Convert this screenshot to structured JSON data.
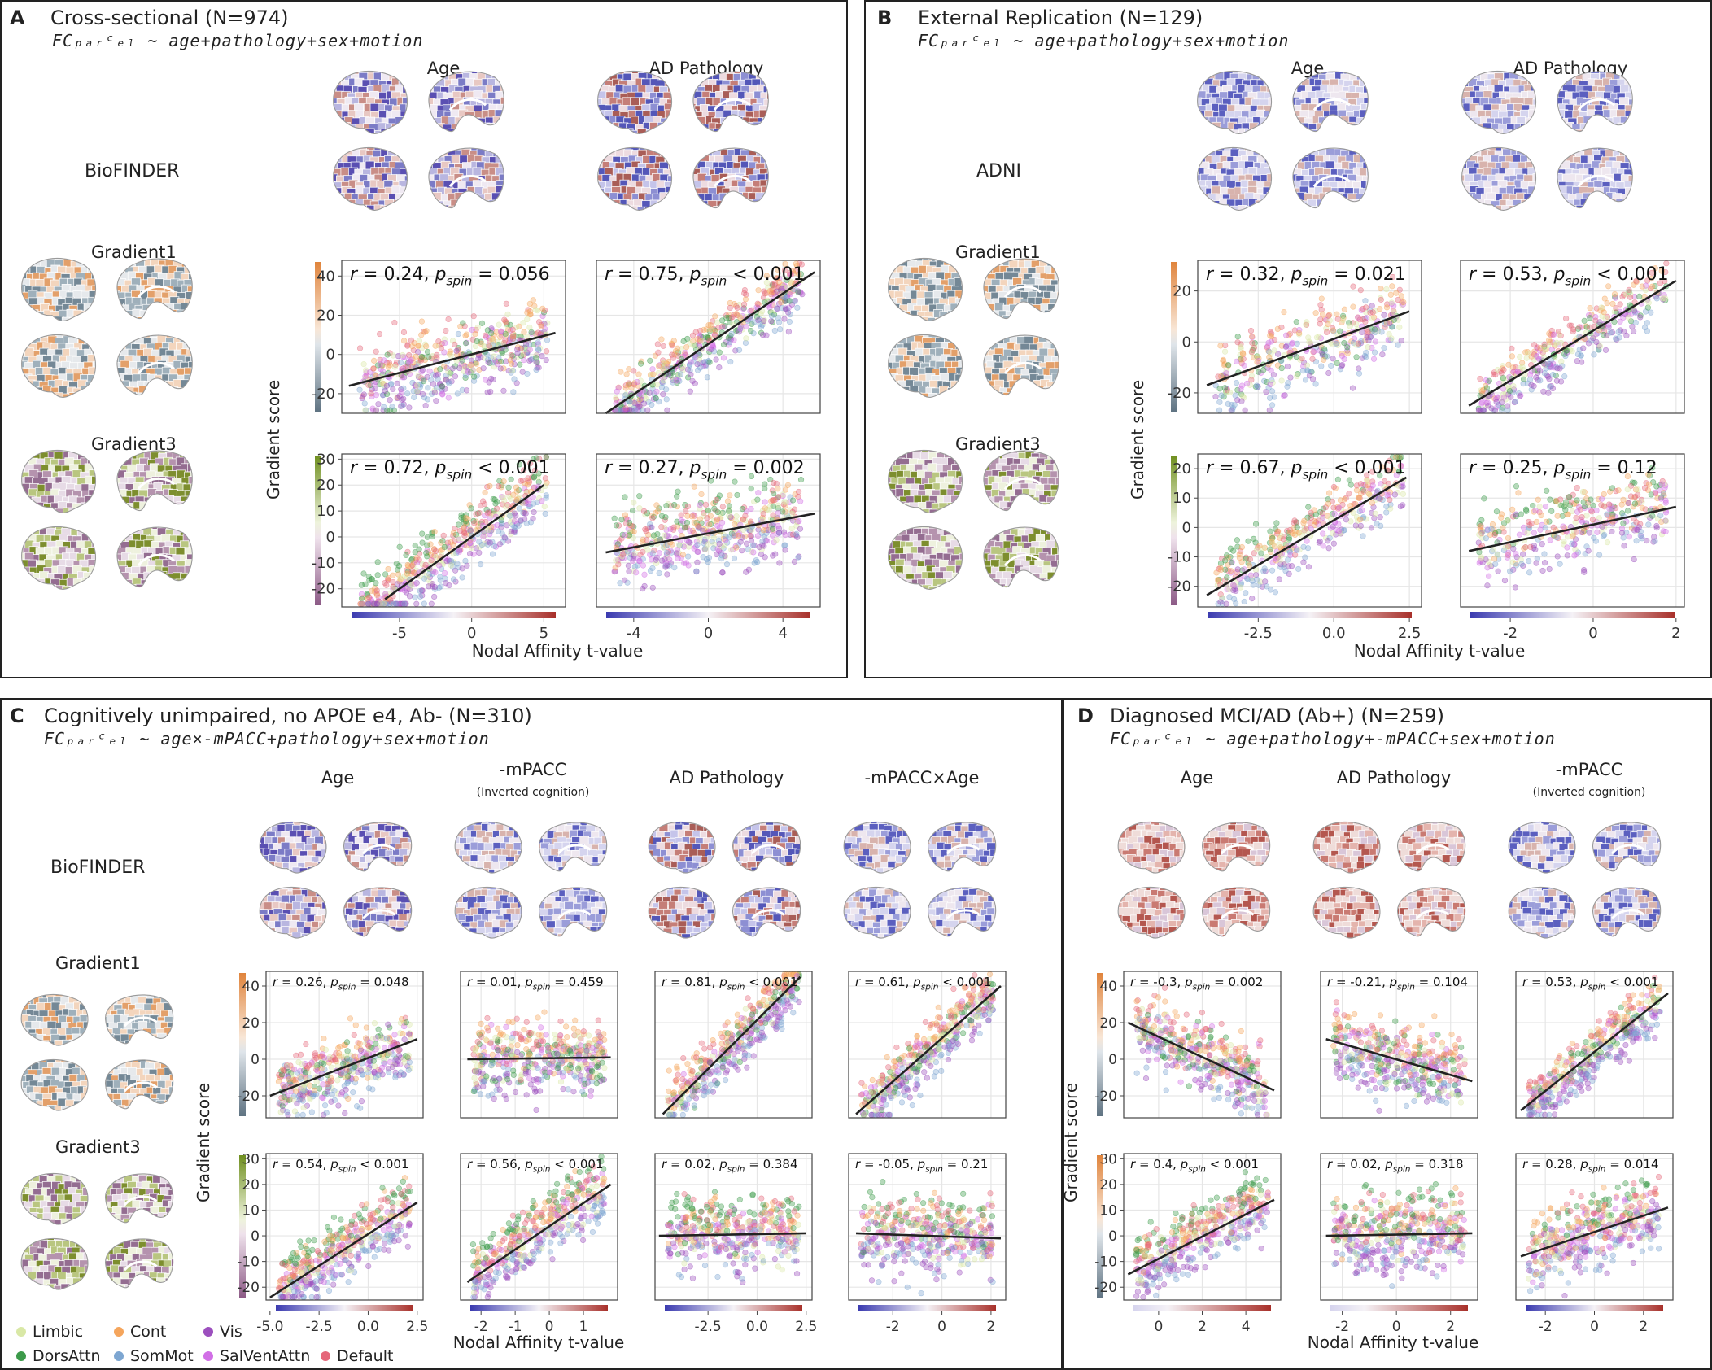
{
  "legend": [
    {
      "name": "Limbic",
      "color": "#d9e8a6"
    },
    {
      "name": "Cont",
      "color": "#f5a55c"
    },
    {
      "name": "Vis",
      "color": "#9c4fbe"
    },
    {
      "name": "DorsAttn",
      "color": "#3c9a4a"
    },
    {
      "name": "SomMot",
      "color": "#7da6d1"
    },
    {
      "name": "SalVentAttn",
      "color": "#d16fe6"
    },
    {
      "name": "Default",
      "color": "#e5677a"
    }
  ],
  "common": {
    "y_label": "Gradient score",
    "x_label": "Nodal Affinity t-value",
    "gradient1": "Gradient1",
    "gradient3": "Gradient3"
  },
  "panels": {
    "A": {
      "letter": "A",
      "title": "Cross-sectional (N=974)",
      "formula": "FCₚₐᵣᶜₑₗ ~ age+pathology+sex+motion",
      "cohort": "BioFINDER",
      "columns": [
        {
          "title": "Age",
          "sub": ""
        },
        {
          "title": "AD Pathology",
          "sub": ""
        }
      ]
    },
    "B": {
      "letter": "B",
      "title": "External Replication (N=129)",
      "formula": "FCₚₐᵣᶜₑₗ ~ age+pathology+sex+motion",
      "cohort": "ADNI",
      "columns": [
        {
          "title": "Age",
          "sub": ""
        },
        {
          "title": "AD Pathology",
          "sub": ""
        }
      ]
    },
    "C": {
      "letter": "C",
      "title": "Cognitively unimpaired, no APOE e4, Ab- (N=310)",
      "formula": "FCₚₐᵣᶜₑₗ ~ age×-mPACC+pathology+sex+motion",
      "cohort": "BioFINDER",
      "columns": [
        {
          "title": "Age",
          "sub": ""
        },
        {
          "title": "-mPACC",
          "sub": "(Inverted cognition)"
        },
        {
          "title": "AD Pathology",
          "sub": ""
        },
        {
          "title": "-mPACC×Age",
          "sub": ""
        }
      ]
    },
    "D": {
      "letter": "D",
      "title": "Diagnosed MCI/AD (Ab+) (N=259)",
      "formula": "FCₚₐᵣᶜₑₗ ~ age+pathology+-mPACC+sex+motion",
      "cohort": "",
      "columns": [
        {
          "title": "Age",
          "sub": ""
        },
        {
          "title": "AD Pathology",
          "sub": ""
        },
        {
          "title": "-mPACC",
          "sub": "(Inverted cognition)"
        }
      ]
    }
  },
  "chart_data": [
    {
      "id": "A-g1-age",
      "type": "scatter",
      "panel": "A",
      "gradient": "Gradient1",
      "column": "Age",
      "r": "0.24",
      "p": "= 0.056",
      "xlim": [
        -9,
        6.5
      ],
      "ylim": [
        -30,
        48
      ],
      "xticks": [
        "-5",
        "0",
        "5"
      ],
      "yticks": [
        "40",
        "20",
        "0",
        "-20"
      ],
      "fit": [
        [
          -8.5,
          -16
        ],
        [
          5.8,
          11
        ]
      ],
      "colorbar": "g1",
      "mode": "a"
    },
    {
      "id": "A-g1-path",
      "type": "scatter",
      "panel": "A",
      "gradient": "Gradient1",
      "column": "AD Pathology",
      "r": "0.75",
      "p": "< 0.001",
      "xlim": [
        -6,
        6
      ],
      "ylim": [
        -30,
        48
      ],
      "xticks": [
        "-4",
        "0",
        "4"
      ],
      "yticks": [],
      "fit": [
        [
          -5.5,
          -30
        ],
        [
          5.7,
          42
        ]
      ],
      "colorbar": "g1",
      "mode": "b"
    },
    {
      "id": "A-g3-age",
      "type": "scatter",
      "panel": "A",
      "gradient": "Gradient3",
      "column": "Age",
      "r": "0.72",
      "p": "< 0.001",
      "xlim": [
        -9,
        6.5
      ],
      "ylim": [
        -27,
        32
      ],
      "xticks": [
        "-5",
        "0",
        "5"
      ],
      "yticks": [
        "30",
        "20",
        "10",
        "0",
        "-10",
        "-20"
      ],
      "fit": [
        [
          -6,
          -24
        ],
        [
          5,
          20
        ]
      ],
      "colorbar": "g3",
      "mode": "c"
    },
    {
      "id": "A-g3-path",
      "type": "scatter",
      "panel": "A",
      "gradient": "Gradient3",
      "column": "AD Pathology",
      "r": "0.27",
      "p": "= 0.002",
      "xlim": [
        -6,
        6
      ],
      "ylim": [
        -27,
        32
      ],
      "xticks": [
        "-4",
        "0",
        "4"
      ],
      "yticks": [],
      "fit": [
        [
          -5.5,
          -6
        ],
        [
          5.7,
          9
        ]
      ],
      "colorbar": "g3",
      "mode": "d"
    },
    {
      "id": "B-g1-age",
      "type": "scatter",
      "panel": "B",
      "gradient": "Gradient1",
      "column": "Age",
      "r": "0.32",
      "p": "= 0.021",
      "xlim": [
        -4.5,
        2.9
      ],
      "ylim": [
        -28,
        32
      ],
      "xticks": [
        "-2.5",
        "0.0",
        "2.5"
      ],
      "yticks": [
        "20",
        "0",
        "-20"
      ],
      "fit": [
        [
          -4.2,
          -17
        ],
        [
          2.5,
          12
        ]
      ],
      "colorbar": "g1",
      "mode": "a"
    },
    {
      "id": "B-g1-path",
      "type": "scatter",
      "panel": "B",
      "gradient": "Gradient1",
      "column": "AD Pathology",
      "r": "0.53",
      "p": "< 0.001",
      "xlim": [
        -3.2,
        2.2
      ],
      "ylim": [
        -28,
        32
      ],
      "xticks": [
        "-2",
        "0",
        "2"
      ],
      "yticks": [],
      "fit": [
        [
          -3,
          -25
        ],
        [
          2,
          24
        ]
      ],
      "colorbar": "g1",
      "mode": "b"
    },
    {
      "id": "B-g3-age",
      "type": "scatter",
      "panel": "B",
      "gradient": "Gradient3",
      "column": "Age",
      "r": "0.67",
      "p": "< 0.001",
      "xlim": [
        -4.5,
        2.9
      ],
      "ylim": [
        -27,
        25
      ],
      "xticks": [
        "-2.5",
        "0.0",
        "2.5"
      ],
      "yticks": [
        "20",
        "10",
        "0",
        "-10",
        "-20"
      ],
      "fit": [
        [
          -4.2,
          -23
        ],
        [
          2.4,
          17
        ]
      ],
      "colorbar": "g3",
      "mode": "c"
    },
    {
      "id": "B-g3-path",
      "type": "scatter",
      "panel": "B",
      "gradient": "Gradient3",
      "column": "AD Pathology",
      "r": "0.25",
      "p": "= 0.12",
      "xlim": [
        -3.2,
        2.2
      ],
      "ylim": [
        -27,
        25
      ],
      "xticks": [
        "-2",
        "0",
        "2"
      ],
      "yticks": [],
      "fit": [
        [
          -3,
          -8
        ],
        [
          2,
          7
        ]
      ],
      "colorbar": "g3",
      "mode": "d"
    },
    {
      "id": "C-g1-age",
      "type": "scatter",
      "panel": "C",
      "gradient": "Gradient1",
      "column": "Age",
      "r": "0.26",
      "p": "= 0.048",
      "xlim": [
        -5.2,
        2.8
      ],
      "ylim": [
        -32,
        48
      ],
      "xticks": [
        "-5.0",
        "-2.5",
        "0.0",
        "2.5"
      ],
      "yticks": [
        "40",
        "20",
        "0",
        "-20"
      ],
      "fit": [
        [
          -5,
          -20
        ],
        [
          2.5,
          11
        ]
      ],
      "colorbar": "g1",
      "mode": "a"
    },
    {
      "id": "C-g1-mpacc",
      "type": "scatter",
      "panel": "C",
      "gradient": "Gradient1",
      "column": "-mPACC",
      "r": "0.01",
      "p": "= 0.459",
      "xlim": [
        -2.6,
        2.0
      ],
      "ylim": [
        -32,
        48
      ],
      "xticks": [
        "-2",
        "-1",
        "0",
        "1"
      ],
      "yticks": [],
      "fit": [
        [
          -2.4,
          0
        ],
        [
          1.8,
          1
        ]
      ],
      "colorbar": "g1",
      "mode": "a"
    },
    {
      "id": "C-g1-path",
      "type": "scatter",
      "panel": "C",
      "gradient": "Gradient1",
      "column": "AD Pathology",
      "r": "0.81",
      "p": "< 0.001",
      "xlim": [
        -5.2,
        2.8
      ],
      "ylim": [
        -32,
        48
      ],
      "xticks": [
        "-2.5",
        "0.0",
        "2.5"
      ],
      "yticks": [],
      "fit": [
        [
          -4.8,
          -30
        ],
        [
          2.2,
          45
        ]
      ],
      "colorbar": "g1",
      "mode": "b"
    },
    {
      "id": "C-g1-int",
      "type": "scatter",
      "panel": "C",
      "gradient": "Gradient1",
      "column": "-mPACC×Age",
      "r": "0.61",
      "p": "< 0.001",
      "xlim": [
        -3.8,
        2.6
      ],
      "ylim": [
        -32,
        48
      ],
      "xticks": [
        "-2",
        "0",
        "2"
      ],
      "yticks": [],
      "fit": [
        [
          -3.5,
          -30
        ],
        [
          2.4,
          40
        ]
      ],
      "colorbar": "g1",
      "mode": "b"
    },
    {
      "id": "C-g3-age",
      "type": "scatter",
      "panel": "C",
      "gradient": "Gradient3",
      "column": "Age",
      "r": "0.54",
      "p": "< 0.001",
      "xlim": [
        -5.2,
        2.8
      ],
      "ylim": [
        -25,
        32
      ],
      "xticks": [
        "-5.0",
        "-2.5",
        "0.0",
        "2.5"
      ],
      "yticks": [
        "30",
        "20",
        "10",
        "0",
        "-10",
        "-20"
      ],
      "fit": [
        [
          -5,
          -24
        ],
        [
          2.5,
          13
        ]
      ],
      "colorbar": "g3",
      "mode": "c"
    },
    {
      "id": "C-g3-mpacc",
      "type": "scatter",
      "panel": "C",
      "gradient": "Gradient3",
      "column": "-mPACC",
      "r": "0.56",
      "p": "< 0.001",
      "xlim": [
        -2.6,
        2.0
      ],
      "ylim": [
        -25,
        32
      ],
      "xticks": [
        "-2",
        "-1",
        "0",
        "1"
      ],
      "yticks": [],
      "fit": [
        [
          -2.4,
          -18
        ],
        [
          1.8,
          20
        ]
      ],
      "colorbar": "g3",
      "mode": "c"
    },
    {
      "id": "C-g3-path",
      "type": "scatter",
      "panel": "C",
      "gradient": "Gradient3",
      "column": "AD Pathology",
      "r": "0.02",
      "p": "= 0.384",
      "xlim": [
        -5.2,
        2.8
      ],
      "ylim": [
        -25,
        32
      ],
      "xticks": [
        "-2.5",
        "0.0",
        "2.5"
      ],
      "yticks": [],
      "fit": [
        [
          -5,
          0
        ],
        [
          2.5,
          1
        ]
      ],
      "colorbar": "g3",
      "mode": "d"
    },
    {
      "id": "C-g3-int",
      "type": "scatter",
      "panel": "C",
      "gradient": "Gradient3",
      "column": "-mPACC×Age",
      "r": "-0.05",
      "p": "= 0.21",
      "xlim": [
        -3.8,
        2.6
      ],
      "ylim": [
        -25,
        32
      ],
      "xticks": [
        "-2",
        "0",
        "2"
      ],
      "yticks": [],
      "fit": [
        [
          -3.5,
          1
        ],
        [
          2.4,
          -1
        ]
      ],
      "colorbar": "g3",
      "mode": "d"
    },
    {
      "id": "D-g1-age",
      "type": "scatter",
      "panel": "D",
      "gradient": "Gradient1",
      "column": "Age",
      "r": "-0.3",
      "p": "= 0.002",
      "xlim": [
        -1.6,
        5.6
      ],
      "ylim": [
        -32,
        48
      ],
      "xticks": [
        "0",
        "2",
        "4"
      ],
      "yticks": [
        "40",
        "20",
        "0",
        "-20"
      ],
      "fit": [
        [
          -1.4,
          20
        ],
        [
          5.3,
          -17
        ]
      ],
      "colorbar": "g1d",
      "mode": "a"
    },
    {
      "id": "D-g1-path",
      "type": "scatter",
      "panel": "D",
      "gradient": "Gradient1",
      "column": "AD Pathology",
      "r": "-0.21",
      "p": "= 0.104",
      "xlim": [
        -2.8,
        3.0
      ],
      "ylim": [
        -32,
        48
      ],
      "xticks": [
        "-2",
        "0",
        "2"
      ],
      "yticks": [],
      "fit": [
        [
          -2.6,
          11
        ],
        [
          2.8,
          -12
        ]
      ],
      "colorbar": "g1d",
      "mode": "a"
    },
    {
      "id": "D-g1-mpacc",
      "type": "scatter",
      "panel": "D",
      "gradient": "Gradient1",
      "column": "-mPACC",
      "r": "0.53",
      "p": "< 0.001",
      "xlim": [
        -3.2,
        3.2
      ],
      "ylim": [
        -32,
        48
      ],
      "xticks": [
        "-2",
        "0",
        "2"
      ],
      "yticks": [],
      "fit": [
        [
          -3,
          -28
        ],
        [
          3,
          36
        ]
      ],
      "colorbar": "g1",
      "mode": "b"
    },
    {
      "id": "D-g3-age",
      "type": "scatter",
      "panel": "D",
      "gradient": "Gradient3",
      "column": "Age",
      "r": "0.4",
      "p": "< 0.001",
      "xlim": [
        -1.6,
        5.6
      ],
      "ylim": [
        -25,
        32
      ],
      "xticks": [
        "0",
        "2",
        "4"
      ],
      "yticks": [
        "30",
        "20",
        "10",
        "0",
        "-10",
        "-20"
      ],
      "fit": [
        [
          -1.4,
          -15
        ],
        [
          5.3,
          14
        ]
      ],
      "colorbar": "g1d",
      "mode": "c"
    },
    {
      "id": "D-g3-path",
      "type": "scatter",
      "panel": "D",
      "gradient": "Gradient3",
      "column": "AD Pathology",
      "r": "0.02",
      "p": "= 0.318",
      "xlim": [
        -2.8,
        3.0
      ],
      "ylim": [
        -25,
        32
      ],
      "xticks": [
        "-2",
        "0",
        "2"
      ],
      "yticks": [],
      "fit": [
        [
          -2.6,
          0
        ],
        [
          2.8,
          1
        ]
      ],
      "colorbar": "g1d",
      "mode": "d"
    },
    {
      "id": "D-g3-mpacc",
      "type": "scatter",
      "panel": "D",
      "gradient": "Gradient3",
      "column": "-mPACC",
      "r": "0.28",
      "p": "= 0.014",
      "xlim": [
        -3.2,
        3.2
      ],
      "ylim": [
        -25,
        32
      ],
      "xticks": [
        "-2",
        "0",
        "2"
      ],
      "yticks": [],
      "fit": [
        [
          -3,
          -8
        ],
        [
          3,
          11
        ]
      ],
      "colorbar": "g1",
      "mode": "d"
    }
  ]
}
